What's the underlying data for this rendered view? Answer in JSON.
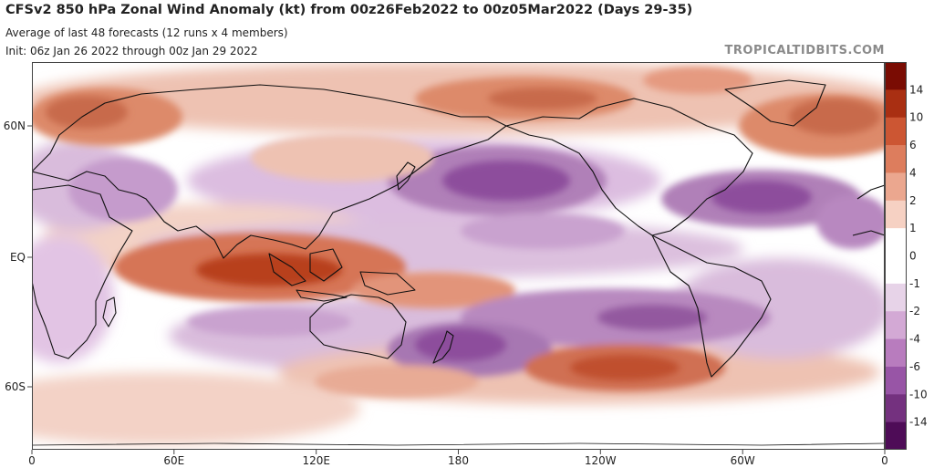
{
  "header": {
    "title": "CFSv2 850 hPa Zonal Wind Anomaly (kt) from 00z26Feb2022 to 00z05Mar2022 (Days 29-35)",
    "subtitle1": "Average of last 48 forecasts (12 runs x 4 members)",
    "subtitle2": "Init: 06z Jan 26 2022 through 00z Jan 29 2022",
    "brand": "TROPICALTIDBITS.COM"
  },
  "map": {
    "lat_labels": [
      "60N",
      "EQ",
      "60S"
    ],
    "lon_labels": [
      "0",
      "60E",
      "120E",
      "180",
      "120W",
      "60W",
      "0"
    ]
  },
  "colorbar": {
    "labels": [
      "14",
      "10",
      "6",
      "4",
      "2",
      "1",
      "0",
      "-1",
      "-2",
      "-4",
      "-6",
      "-10",
      "-14"
    ],
    "colors": [
      "#7a0c03",
      "#a92f12",
      "#cc5633",
      "#dd7d5d",
      "#eba78f",
      "#f6d1c3",
      "#ffffff",
      "#ffffff",
      "#e7d3e8",
      "#d3a9d5",
      "#b87cbe",
      "#9855a6",
      "#74317f",
      "#4e0c57"
    ]
  },
  "chart_data": {
    "type": "heatmap",
    "variable": "850 hPa Zonal Wind Anomaly",
    "units": "kt",
    "levels": [
      -14,
      -10,
      -6,
      -4,
      -2,
      -1,
      0,
      1,
      2,
      4,
      6,
      10,
      14
    ],
    "anomaly_features": [
      {
        "region": "North Pacific 20-40N, 150E-140W",
        "sign": "negative",
        "approx_value": -10
      },
      {
        "region": "Gulf of Mexico / western subtropical Atlantic",
        "sign": "negative",
        "approx_value": -8
      },
      {
        "region": "Indian Ocean equatorial belt 60-130E",
        "sign": "positive",
        "approx_value": 12
      },
      {
        "region": "South Pacific near New Zealand 35-50S",
        "sign": "negative",
        "approx_value": -10
      },
      {
        "region": "Southern Ocean 50-60S, 150-60W",
        "sign": "positive",
        "approx_value": 8
      },
      {
        "region": "Northern Europe / North Atlantic 55-70N",
        "sign": "positive",
        "approx_value": 8
      }
    ]
  }
}
